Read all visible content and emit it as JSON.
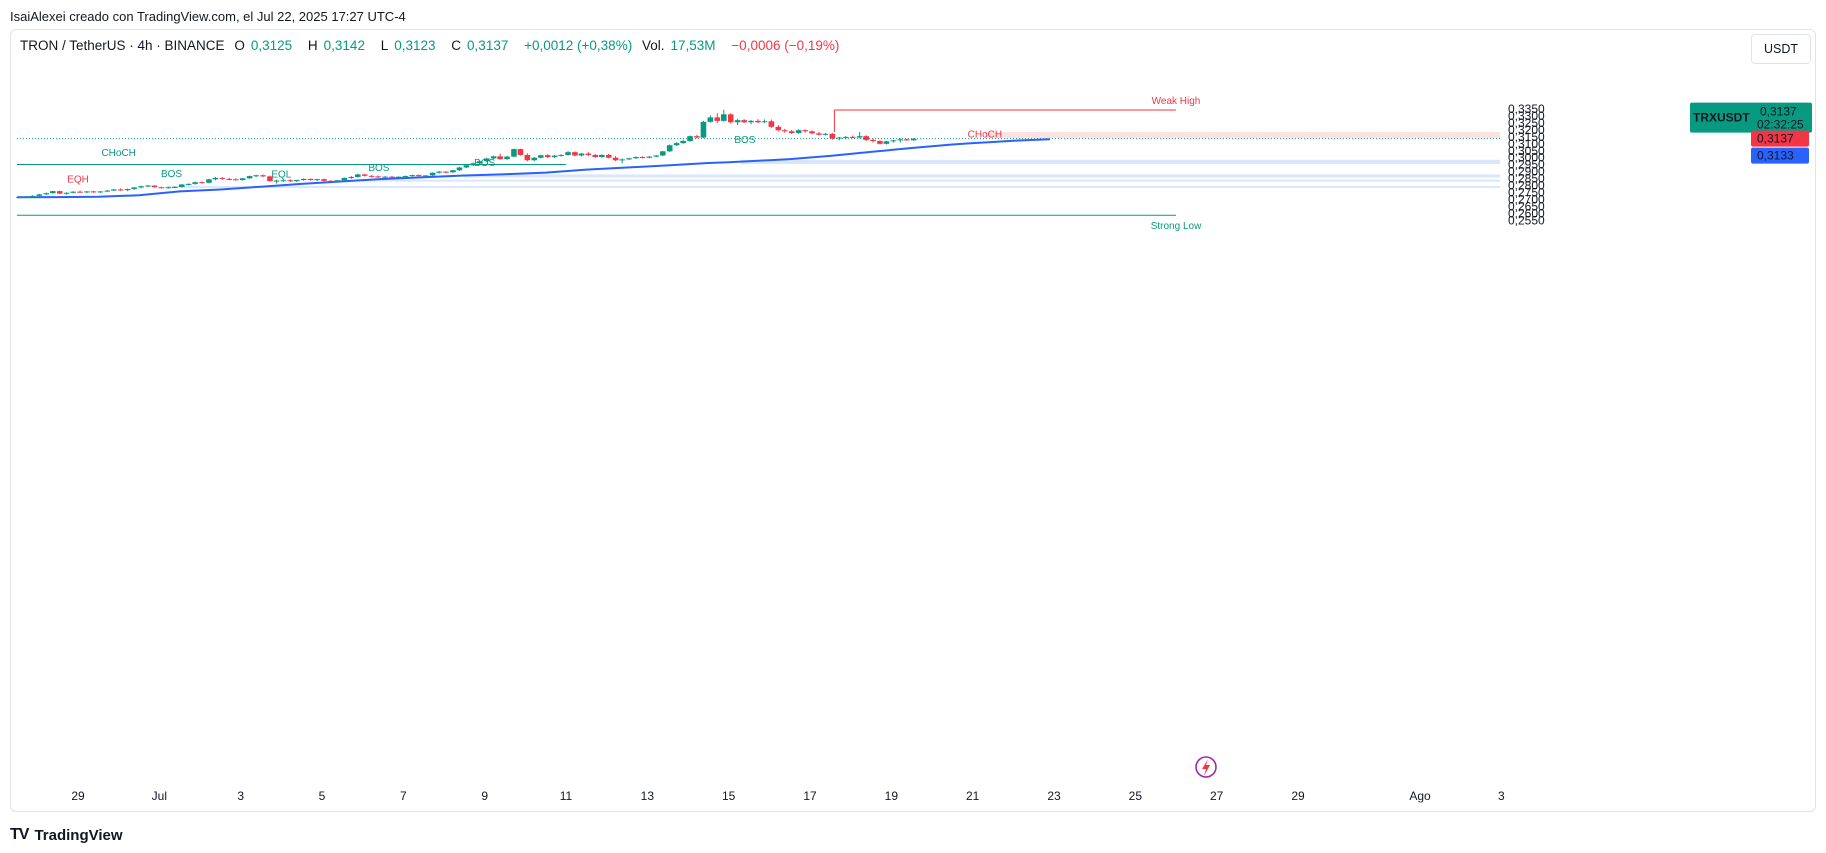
{
  "header": {
    "credit": "IsaiAlexei creado con TradingView.com, el Jul 22, 2025 17:27 UTC-4"
  },
  "legend": {
    "symbol": "TRON / TetherUS · 4h · BINANCE",
    "o_label": "O",
    "o_value": "0,3125",
    "h_label": "H",
    "h_value": "0,3142",
    "l_label": "L",
    "l_value": "0,3123",
    "c_label": "C",
    "c_value": "0,3137",
    "change": "+0,0012 (+0,38%)",
    "vol_label": "Vol.",
    "vol_value": "17,53M",
    "vol_change": "−0,0006 (−0,19%)"
  },
  "currency_button": "USDT",
  "footer": {
    "brand": "TradingView",
    "logo": "TV"
  },
  "colors": {
    "up": "#089981",
    "down": "#f23645",
    "ma": "#2962ff",
    "demand_zone": "#dbe6fd",
    "supply_zone": "#fde2e2",
    "structure": "#089981",
    "resistance": "#f23645"
  },
  "chart_data": {
    "type": "candlestick",
    "symbol": "TRXUSDT",
    "timeframe": "4h",
    "ylim": [
      0.251,
      0.3405
    ],
    "y_ticks": [
      "0,2550",
      "0,2600",
      "0,2650",
      "0,2700",
      "0,2750",
      "0,2800",
      "0,2850",
      "0,2900",
      "0,2950",
      "0,3000",
      "0,3050",
      "0,3100",
      "0,3150",
      "0,3200",
      "0,3250",
      "0,3300",
      "0,3350"
    ],
    "x_ticks": [
      {
        "label": "29",
        "day": 29
      },
      {
        "label": "Jul",
        "day": 31
      },
      {
        "label": "3",
        "day": 33
      },
      {
        "label": "5",
        "day": 35
      },
      {
        "label": "7",
        "day": 37
      },
      {
        "label": "9",
        "day": 39
      },
      {
        "label": "11",
        "day": 41
      },
      {
        "label": "13",
        "day": 43
      },
      {
        "label": "15",
        "day": 45
      },
      {
        "label": "17",
        "day": 47
      },
      {
        "label": "19",
        "day": 49
      },
      {
        "label": "21",
        "day": 51
      },
      {
        "label": "23",
        "day": 53
      },
      {
        "label": "25",
        "day": 55
      },
      {
        "label": "27",
        "day": 57
      },
      {
        "label": "29",
        "day": 59
      },
      {
        "label": "Ago",
        "day": 62
      },
      {
        "label": "3",
        "day": 64
      }
    ],
    "price_labels": [
      {
        "id": "last",
        "title": "TRXUSDT",
        "value": "0,3137",
        "countdown": "02:32:25",
        "color": "#089981",
        "price": 0.3137
      },
      {
        "id": "close",
        "value": "0,3137",
        "color": "#f23645",
        "price": 0.3137
      },
      {
        "id": "ma",
        "value": "0,3133",
        "color": "#2962ff",
        "price": 0.3133
      }
    ],
    "annotations": [
      {
        "text": "Weak High",
        "color": "#f23645",
        "price": 0.3343,
        "day": 56.0
      },
      {
        "text": "Strong Low",
        "color": "#089981",
        "price": 0.2587,
        "day": 56.0
      },
      {
        "text": "CHoCH",
        "color": "#089981",
        "price": 0.2969,
        "day": 30.0
      },
      {
        "text": "CHoCH",
        "color": "#f23645",
        "price": 0.3103,
        "day": 51.3
      },
      {
        "text": "EQH",
        "color": "#f23645",
        "price": 0.2778,
        "day": 29.0
      },
      {
        "text": "EQL",
        "color": "#089981",
        "price": 0.2815,
        "day": 34.0
      },
      {
        "text": "BOS",
        "color": "#089981",
        "price": 0.2819,
        "day": 31.3
      },
      {
        "text": "BOS",
        "color": "#089981",
        "price": 0.2863,
        "day": 36.4
      },
      {
        "text": "BOS",
        "color": "#089981",
        "price": 0.2896,
        "day": 39.0
      },
      {
        "text": "BOS",
        "color": "#089981",
        "price": 0.3062,
        "day": 45.4
      }
    ],
    "levels": [
      {
        "name": "weak-high",
        "price": 0.3343,
        "from": 47.6,
        "to": 56.0,
        "color": "#f23645"
      },
      {
        "name": "strong-low",
        "price": 0.2587,
        "from": 27.5,
        "to": 56.0,
        "color": "#089981"
      },
      {
        "name": "choch-level",
        "price": 0.2951,
        "from": 27.5,
        "to": 41.0,
        "color": "#089981"
      },
      {
        "name": "last-price",
        "price": 0.3137,
        "from": 27.5,
        "to": 64.3,
        "color": "#089981",
        "dotted": true
      }
    ],
    "zones": [
      {
        "name": "supply-zone",
        "top": 0.3185,
        "bottom": 0.314,
        "from": 51.3,
        "to": 64.3,
        "color": "#fde2e2"
      },
      {
        "name": "demand-zone-1",
        "top": 0.2985,
        "bottom": 0.2955,
        "from": 45.3,
        "to": 64.3,
        "color": "#dbe6fd"
      },
      {
        "name": "demand-zone-2",
        "top": 0.288,
        "bottom": 0.2858,
        "from": 38.5,
        "to": 64.3,
        "color": "#dbe6fd"
      },
      {
        "name": "demand-zone-3",
        "top": 0.2843,
        "bottom": 0.2828,
        "from": 36.0,
        "to": 64.3,
        "color": "#dbe6fd"
      },
      {
        "name": "demand-zone-4",
        "top": 0.2797,
        "bottom": 0.2783,
        "from": 31.2,
        "to": 64.3,
        "color": "#dbe6fd"
      }
    ],
    "ma_series": {
      "name": "MA",
      "points": [
        [
          27.5,
          0.2716
        ],
        [
          28.5,
          0.2717
        ],
        [
          29.5,
          0.272
        ],
        [
          30.5,
          0.273
        ],
        [
          31.5,
          0.2758
        ],
        [
          32.5,
          0.2772
        ],
        [
          33.5,
          0.2792
        ],
        [
          34.5,
          0.2812
        ],
        [
          35.5,
          0.283
        ],
        [
          36.5,
          0.2847
        ],
        [
          37.5,
          0.286
        ],
        [
          38.5,
          0.2872
        ],
        [
          39.5,
          0.2882
        ],
        [
          40.5,
          0.2893
        ],
        [
          41.5,
          0.2915
        ],
        [
          42.5,
          0.293
        ],
        [
          43.5,
          0.2945
        ],
        [
          44.5,
          0.2962
        ],
        [
          45.0,
          0.2968
        ],
        [
          46.0,
          0.2982
        ],
        [
          46.5,
          0.299
        ],
        [
          47.5,
          0.3013
        ],
        [
          48.5,
          0.3042
        ],
        [
          49.5,
          0.307
        ],
        [
          50.5,
          0.3095
        ],
        [
          51.0,
          0.3105
        ],
        [
          51.5,
          0.3113
        ],
        [
          52.0,
          0.3122
        ],
        [
          52.5,
          0.3128
        ],
        [
          52.9,
          0.3133
        ]
      ]
    },
    "candles": [
      [
        27.55,
        0.2712,
        0.2722,
        0.2708,
        0.2718
      ],
      [
        27.72,
        0.2718,
        0.2725,
        0.2712,
        0.272
      ],
      [
        27.88,
        0.272,
        0.273,
        0.2716,
        0.2726
      ],
      [
        28.05,
        0.2726,
        0.274,
        0.2722,
        0.2737
      ],
      [
        28.22,
        0.2737,
        0.275,
        0.2733,
        0.2745
      ],
      [
        28.38,
        0.2745,
        0.2762,
        0.2742,
        0.276
      ],
      [
        28.55,
        0.276,
        0.2763,
        0.2738,
        0.2742
      ],
      [
        28.72,
        0.2742,
        0.2752,
        0.2734,
        0.2748
      ],
      [
        28.88,
        0.2748,
        0.276,
        0.2744,
        0.2756
      ],
      [
        29.05,
        0.2756,
        0.2765,
        0.2748,
        0.2751
      ],
      [
        29.22,
        0.2751,
        0.276,
        0.2745,
        0.2758
      ],
      [
        29.38,
        0.2758,
        0.2762,
        0.2748,
        0.2752
      ],
      [
        29.55,
        0.2752,
        0.276,
        0.2747,
        0.2758
      ],
      [
        29.72,
        0.2758,
        0.2768,
        0.2752,
        0.2764
      ],
      [
        29.88,
        0.2764,
        0.2776,
        0.276,
        0.2772
      ],
      [
        30.05,
        0.2772,
        0.278,
        0.2762,
        0.2767
      ],
      [
        30.22,
        0.2767,
        0.2778,
        0.276,
        0.2775
      ],
      [
        30.38,
        0.2775,
        0.279,
        0.277,
        0.2786
      ],
      [
        30.55,
        0.2786,
        0.28,
        0.278,
        0.2795
      ],
      [
        30.72,
        0.2795,
        0.2805,
        0.2788,
        0.28
      ],
      [
        30.88,
        0.28,
        0.2802,
        0.2785,
        0.2788
      ],
      [
        31.05,
        0.2788,
        0.2792,
        0.278,
        0.2784
      ],
      [
        31.22,
        0.2784,
        0.2792,
        0.2778,
        0.2788
      ],
      [
        31.38,
        0.2788,
        0.2795,
        0.2782,
        0.279
      ],
      [
        31.55,
        0.279,
        0.281,
        0.2786,
        0.2808
      ],
      [
        31.72,
        0.2808,
        0.2815,
        0.28,
        0.2812
      ],
      [
        31.88,
        0.2812,
        0.2828,
        0.2806,
        0.2824
      ],
      [
        32.05,
        0.2824,
        0.283,
        0.2815,
        0.282
      ],
      [
        32.22,
        0.282,
        0.2848,
        0.2816,
        0.2845
      ],
      [
        32.38,
        0.2845,
        0.2862,
        0.2838,
        0.2855
      ],
      [
        32.55,
        0.2855,
        0.286,
        0.284,
        0.2848
      ],
      [
        32.72,
        0.2848,
        0.2856,
        0.2838,
        0.2845
      ],
      [
        32.88,
        0.2845,
        0.2852,
        0.2836,
        0.284
      ],
      [
        33.05,
        0.284,
        0.2855,
        0.2835,
        0.2852
      ],
      [
        33.22,
        0.2852,
        0.2872,
        0.2848,
        0.2868
      ],
      [
        33.38,
        0.2868,
        0.2878,
        0.286,
        0.2874
      ],
      [
        33.55,
        0.2874,
        0.288,
        0.2862,
        0.2866
      ],
      [
        33.72,
        0.2866,
        0.2872,
        0.2828,
        0.2832
      ],
      [
        33.88,
        0.2832,
        0.2842,
        0.2815,
        0.2836
      ],
      [
        34.05,
        0.2836,
        0.2848,
        0.2828,
        0.2838
      ],
      [
        34.22,
        0.2838,
        0.2845,
        0.2825,
        0.2832
      ],
      [
        34.38,
        0.2832,
        0.2842,
        0.2826,
        0.284
      ],
      [
        34.55,
        0.284,
        0.2852,
        0.2835,
        0.2848
      ],
      [
        34.72,
        0.2848,
        0.285,
        0.2835,
        0.284
      ],
      [
        34.88,
        0.284,
        0.2848,
        0.2832,
        0.2846
      ],
      [
        35.05,
        0.2846,
        0.285,
        0.283,
        0.2834
      ],
      [
        35.22,
        0.2834,
        0.284,
        0.2826,
        0.283
      ],
      [
        35.38,
        0.283,
        0.284,
        0.2825,
        0.2838
      ],
      [
        35.55,
        0.2838,
        0.2858,
        0.2834,
        0.2855
      ],
      [
        35.72,
        0.2855,
        0.2868,
        0.2848,
        0.2862
      ],
      [
        35.88,
        0.2862,
        0.2885,
        0.2858,
        0.288
      ],
      [
        36.05,
        0.288,
        0.2885,
        0.2865,
        0.287
      ],
      [
        36.22,
        0.287,
        0.2875,
        0.2858,
        0.2866
      ],
      [
        36.38,
        0.2866,
        0.2872,
        0.2855,
        0.286
      ],
      [
        36.55,
        0.286,
        0.2868,
        0.2855,
        0.2864
      ],
      [
        36.72,
        0.2864,
        0.287,
        0.2858,
        0.2862
      ],
      [
        36.88,
        0.2862,
        0.2866,
        0.2858,
        0.2864
      ],
      [
        37.05,
        0.2864,
        0.2872,
        0.286,
        0.2868
      ],
      [
        37.22,
        0.2868,
        0.2878,
        0.2864,
        0.2875
      ],
      [
        37.38,
        0.2875,
        0.288,
        0.2866,
        0.287
      ],
      [
        37.55,
        0.287,
        0.2875,
        0.2862,
        0.2873
      ],
      [
        37.72,
        0.2873,
        0.2895,
        0.287,
        0.2892
      ],
      [
        37.88,
        0.2892,
        0.2906,
        0.2886,
        0.29
      ],
      [
        38.05,
        0.29,
        0.2904,
        0.289,
        0.2895
      ],
      [
        38.22,
        0.2895,
        0.2912,
        0.2892,
        0.291
      ],
      [
        38.38,
        0.291,
        0.2935,
        0.2905,
        0.293
      ],
      [
        38.55,
        0.293,
        0.295,
        0.2925,
        0.2946
      ],
      [
        38.72,
        0.2946,
        0.2965,
        0.294,
        0.296
      ],
      [
        38.88,
        0.296,
        0.298,
        0.2955,
        0.2975
      ],
      [
        39.05,
        0.2975,
        0.3,
        0.297,
        0.2995
      ],
      [
        39.22,
        0.2995,
        0.3015,
        0.299,
        0.301
      ],
      [
        39.38,
        0.301,
        0.303,
        0.2985,
        0.299
      ],
      [
        39.55,
        0.299,
        0.3012,
        0.2985,
        0.3008
      ],
      [
        39.72,
        0.3008,
        0.3066,
        0.3005,
        0.3062
      ],
      [
        39.88,
        0.3062,
        0.3066,
        0.3015,
        0.302
      ],
      [
        40.05,
        0.302,
        0.3032,
        0.2975,
        0.2982
      ],
      [
        40.22,
        0.2982,
        0.3005,
        0.2976,
        0.3
      ],
      [
        40.38,
        0.3,
        0.3022,
        0.2995,
        0.3018
      ],
      [
        40.55,
        0.3018,
        0.3026,
        0.2998,
        0.3005
      ],
      [
        40.72,
        0.3005,
        0.302,
        0.2998,
        0.3015
      ],
      [
        40.88,
        0.3015,
        0.3025,
        0.3008,
        0.302
      ],
      [
        41.05,
        0.302,
        0.3048,
        0.3015,
        0.304
      ],
      [
        41.22,
        0.304,
        0.3045,
        0.301,
        0.3016
      ],
      [
        41.38,
        0.3016,
        0.3035,
        0.301,
        0.303
      ],
      [
        41.55,
        0.303,
        0.304,
        0.3012,
        0.302
      ],
      [
        41.72,
        0.302,
        0.3028,
        0.3,
        0.3005
      ],
      [
        41.88,
        0.3005,
        0.3025,
        0.3,
        0.302
      ],
      [
        42.05,
        0.302,
        0.3028,
        0.2995,
        0.3
      ],
      [
        42.22,
        0.3,
        0.3012,
        0.2975,
        0.2982
      ],
      [
        42.38,
        0.2982,
        0.2995,
        0.296,
        0.2988
      ],
      [
        42.55,
        0.2988,
        0.3,
        0.2984,
        0.2996
      ],
      [
        42.72,
        0.2996,
        0.301,
        0.2992,
        0.3005
      ],
      [
        42.88,
        0.3005,
        0.301,
        0.2995,
        0.3
      ],
      [
        43.05,
        0.3,
        0.3012,
        0.2996,
        0.3008
      ],
      [
        43.22,
        0.3008,
        0.302,
        0.3004,
        0.3016
      ],
      [
        43.38,
        0.3016,
        0.305,
        0.3012,
        0.3046
      ],
      [
        43.55,
        0.3046,
        0.3095,
        0.3042,
        0.309
      ],
      [
        43.72,
        0.309,
        0.3112,
        0.3085,
        0.3105
      ],
      [
        43.88,
        0.3105,
        0.3128,
        0.31,
        0.312
      ],
      [
        44.05,
        0.312,
        0.316,
        0.3115,
        0.3155
      ],
      [
        44.22,
        0.3155,
        0.3165,
        0.3138,
        0.3145
      ],
      [
        44.38,
        0.3145,
        0.3265,
        0.314,
        0.3258
      ],
      [
        44.55,
        0.3258,
        0.3305,
        0.3252,
        0.329
      ],
      [
        44.72,
        0.329,
        0.332,
        0.325,
        0.3265
      ],
      [
        44.88,
        0.3265,
        0.3345,
        0.326,
        0.3312
      ],
      [
        45.05,
        0.3312,
        0.332,
        0.3245,
        0.3255
      ],
      [
        45.22,
        0.3255,
        0.328,
        0.3235,
        0.327
      ],
      [
        45.38,
        0.327,
        0.3278,
        0.3248,
        0.3255
      ],
      [
        45.55,
        0.3255,
        0.3272,
        0.324,
        0.3265
      ],
      [
        45.72,
        0.3265,
        0.3278,
        0.3248,
        0.3255
      ],
      [
        45.88,
        0.3255,
        0.3275,
        0.325,
        0.3262
      ],
      [
        46.05,
        0.3262,
        0.3275,
        0.3215,
        0.3222
      ],
      [
        46.22,
        0.3222,
        0.3235,
        0.319,
        0.3198
      ],
      [
        46.38,
        0.3198,
        0.3208,
        0.318,
        0.319
      ],
      [
        46.55,
        0.319,
        0.32,
        0.317,
        0.3178
      ],
      [
        46.72,
        0.3178,
        0.3205,
        0.3172,
        0.3198
      ],
      [
        46.88,
        0.3198,
        0.3205,
        0.318,
        0.319
      ],
      [
        47.05,
        0.319,
        0.3195,
        0.3168,
        0.3175
      ],
      [
        47.22,
        0.3175,
        0.3185,
        0.316,
        0.3165
      ],
      [
        47.38,
        0.3165,
        0.3178,
        0.316,
        0.3172
      ],
      [
        47.55,
        0.3172,
        0.3178,
        0.313,
        0.3138
      ],
      [
        47.72,
        0.3138,
        0.315,
        0.3125,
        0.3145
      ],
      [
        47.88,
        0.3145,
        0.3155,
        0.3132,
        0.315
      ],
      [
        48.05,
        0.315,
        0.316,
        0.314,
        0.3145
      ],
      [
        48.22,
        0.3145,
        0.3185,
        0.314,
        0.3155
      ],
      [
        48.38,
        0.3155,
        0.3162,
        0.312,
        0.3128
      ],
      [
        48.55,
        0.3128,
        0.314,
        0.311,
        0.312
      ],
      [
        48.72,
        0.312,
        0.3125,
        0.3095,
        0.31
      ],
      [
        48.88,
        0.31,
        0.3122,
        0.3095,
        0.3118
      ],
      [
        49.05,
        0.3118,
        0.313,
        0.3108,
        0.3125
      ],
      [
        49.22,
        0.3125,
        0.314,
        0.311,
        0.3132
      ],
      [
        49.38,
        0.3132,
        0.3138,
        0.3122,
        0.3125
      ],
      [
        49.55,
        0.3125,
        0.3142,
        0.3123,
        0.3137
      ]
    ]
  }
}
